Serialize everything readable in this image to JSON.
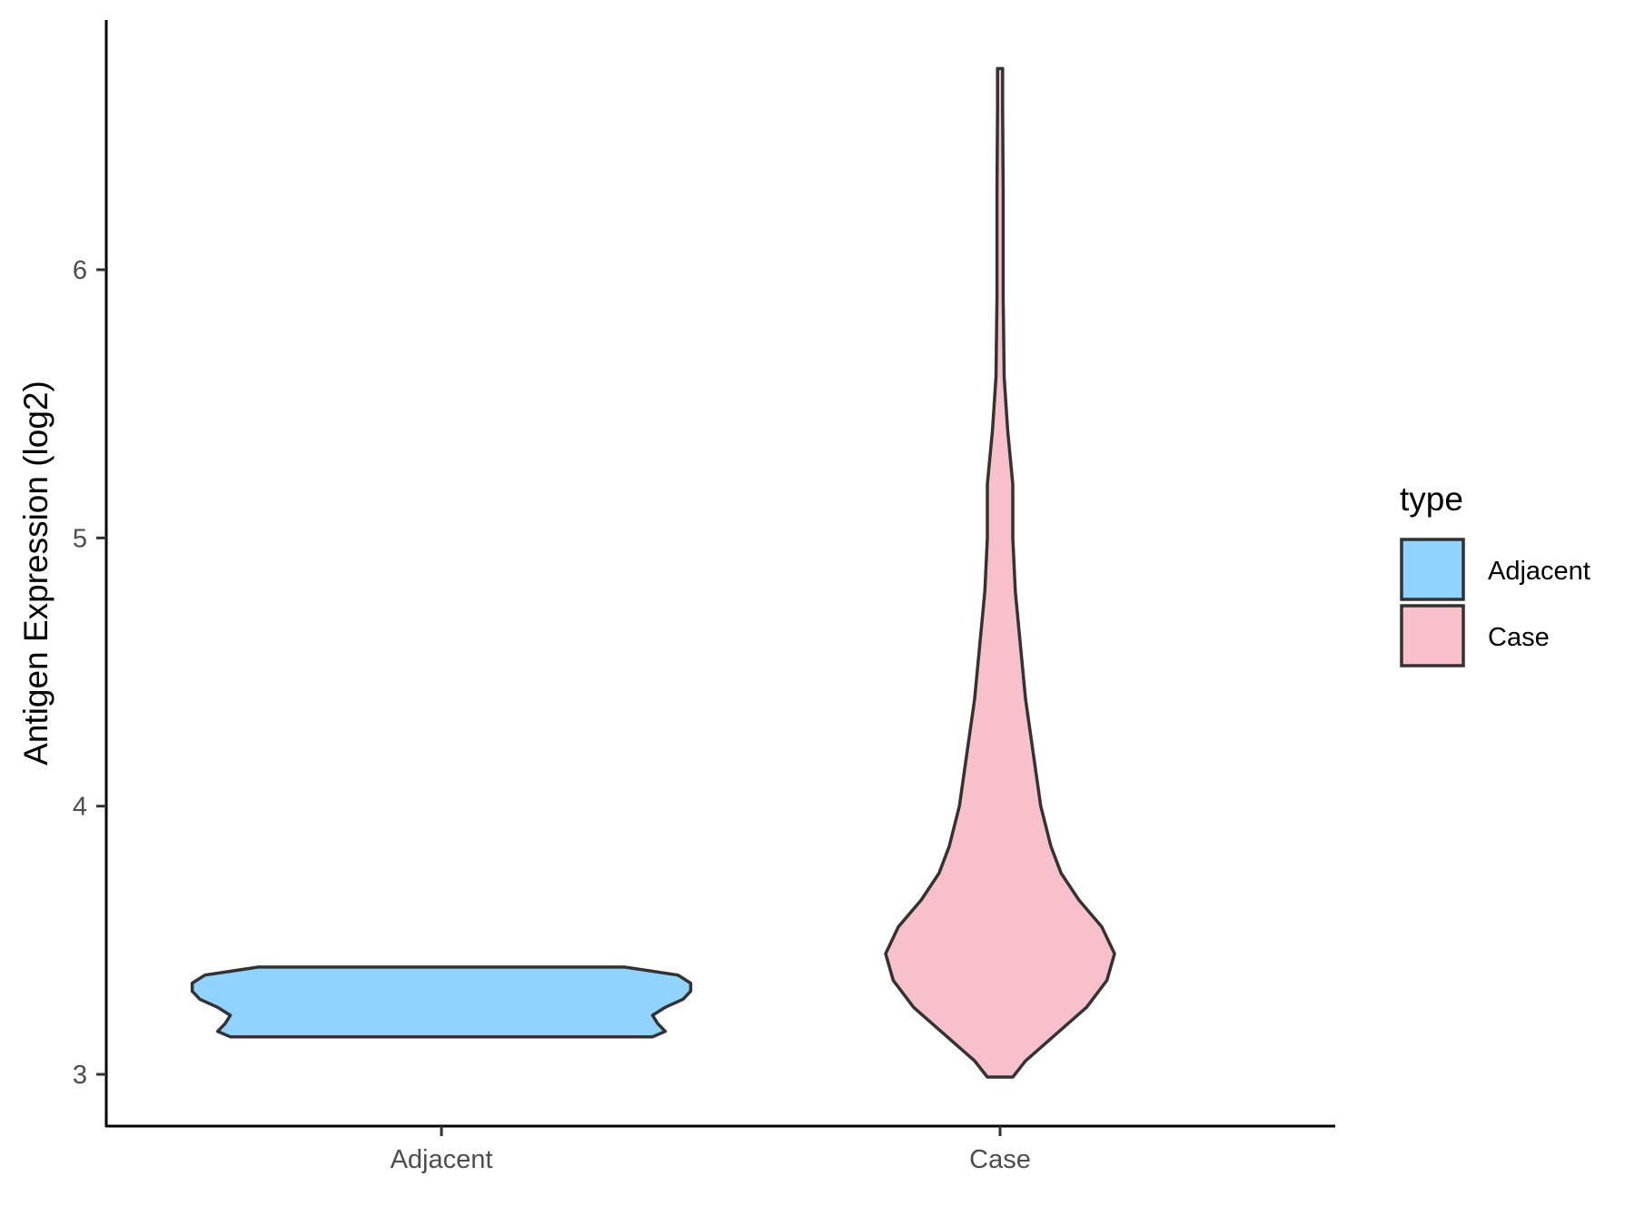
{
  "chart_data": {
    "type": "violin",
    "title": "",
    "xlabel": "",
    "ylabel": "Antigen Expression (log2)",
    "categories": [
      "Adjacent",
      "Case"
    ],
    "y_ticks": [
      3,
      4,
      5,
      6
    ],
    "ylim": [
      2.8,
      6.9
    ],
    "grid": false,
    "legend": {
      "title": "type",
      "position": "right",
      "entries": [
        {
          "label": "Adjacent",
          "color": "#8fd3fe"
        },
        {
          "label": "Case",
          "color": "#f8c0cb"
        }
      ]
    },
    "series": [
      {
        "category": "Adjacent",
        "color": "#8fd3fe",
        "min": 3.14,
        "max": 3.4,
        "density": [
          [
            3.14,
            0.83
          ],
          [
            3.16,
            0.88
          ],
          [
            3.19,
            0.85
          ],
          [
            3.22,
            0.83
          ],
          [
            3.25,
            0.88
          ],
          [
            3.28,
            0.95
          ],
          [
            3.31,
            0.98
          ],
          [
            3.34,
            0.98
          ],
          [
            3.37,
            0.93
          ],
          [
            3.4,
            0.72
          ]
        ]
      },
      {
        "category": "Case",
        "color": "#f8c0cb",
        "min": 2.99,
        "max": 6.75,
        "density": [
          [
            2.99,
            0.05
          ],
          [
            3.05,
            0.1
          ],
          [
            3.15,
            0.22
          ],
          [
            3.25,
            0.34
          ],
          [
            3.35,
            0.42
          ],
          [
            3.45,
            0.45
          ],
          [
            3.55,
            0.4
          ],
          [
            3.65,
            0.31
          ],
          [
            3.75,
            0.24
          ],
          [
            3.85,
            0.2
          ],
          [
            4.0,
            0.16
          ],
          [
            4.2,
            0.13
          ],
          [
            4.4,
            0.1
          ],
          [
            4.6,
            0.08
          ],
          [
            4.8,
            0.06
          ],
          [
            5.0,
            0.05
          ],
          [
            5.2,
            0.05
          ],
          [
            5.4,
            0.03
          ],
          [
            5.6,
            0.016
          ],
          [
            5.9,
            0.012
          ],
          [
            6.3,
            0.012
          ],
          [
            6.6,
            0.01
          ],
          [
            6.75,
            0.01
          ]
        ]
      }
    ]
  }
}
